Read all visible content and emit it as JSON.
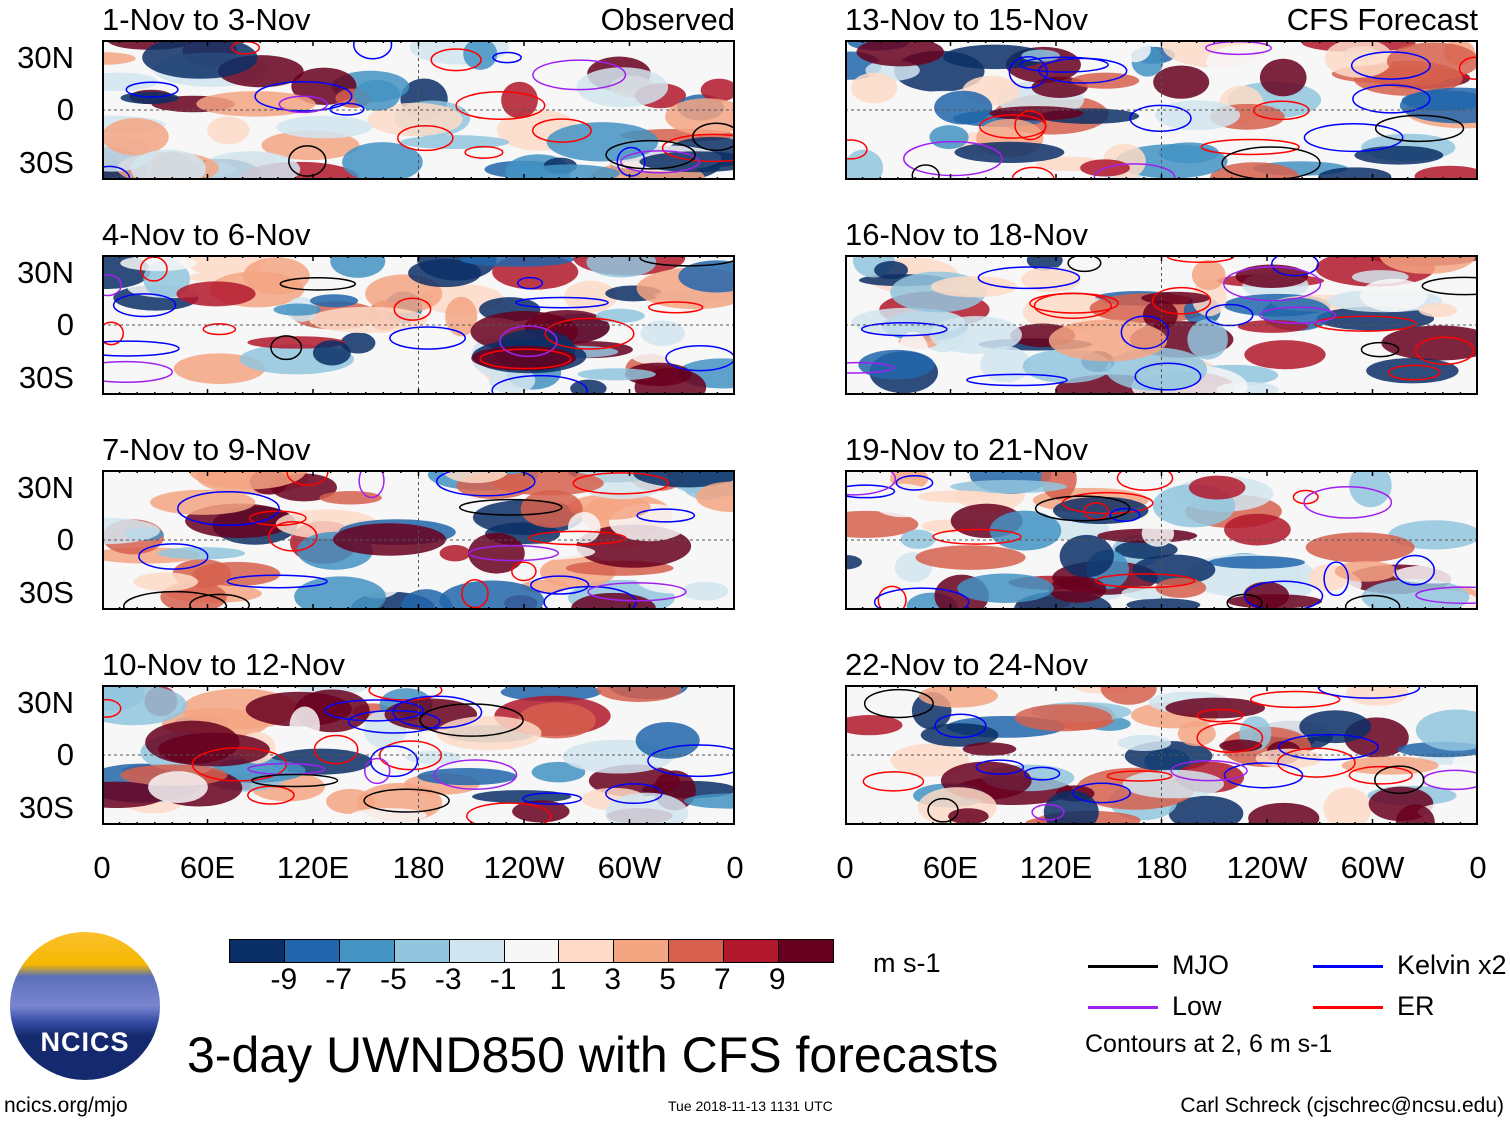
{
  "panels": [
    {
      "title": "1-Nov to 3-Nov",
      "tag": "Observed"
    },
    {
      "title": "4-Nov to 6-Nov",
      "tag": ""
    },
    {
      "title": "7-Nov to 9-Nov",
      "tag": ""
    },
    {
      "title": "10-Nov to 12-Nov",
      "tag": ""
    },
    {
      "title": "13-Nov to 15-Nov",
      "tag": "CFS Forecast"
    },
    {
      "title": "16-Nov to 18-Nov",
      "tag": ""
    },
    {
      "title": "19-Nov to 21-Nov",
      "tag": ""
    },
    {
      "title": "22-Nov to 24-Nov",
      "tag": ""
    }
  ],
  "lat_labels": [
    "30N",
    "0",
    "30S"
  ],
  "lon_labels": [
    "0",
    "60E",
    "120E",
    "180",
    "120W",
    "60W",
    "0"
  ],
  "colorbar": {
    "labels": [
      "-9",
      "-7",
      "-5",
      "-3",
      "-1",
      "1",
      "3",
      "5",
      "7",
      "9"
    ],
    "colors": [
      "#0a2f66",
      "#2166ac",
      "#4393c3",
      "#92c5de",
      "#d1e5f0",
      "#f7f7f7",
      "#fddbc7",
      "#f4a582",
      "#d6604d",
      "#b2182b",
      "#67001f"
    ],
    "units": "m s-1"
  },
  "legend": {
    "items": [
      {
        "label": "MJO",
        "color": "#000000"
      },
      {
        "label": "Kelvin x2",
        "color": "#0000ff"
      },
      {
        "label": "Low",
        "color": "#a020f0"
      },
      {
        "label": "ER",
        "color": "#ff0000"
      }
    ],
    "note": "Contours at 2, 6 m s-1"
  },
  "title": "3-day UWND850 with CFS forecasts",
  "logo_text": "NCICS",
  "footer": {
    "url": "ncics.org/mjo",
    "timestamp": "Tue 2018-11-13 1131 UTC",
    "author": "Carl Schreck (cjschrec@ncsu.edu)"
  }
}
